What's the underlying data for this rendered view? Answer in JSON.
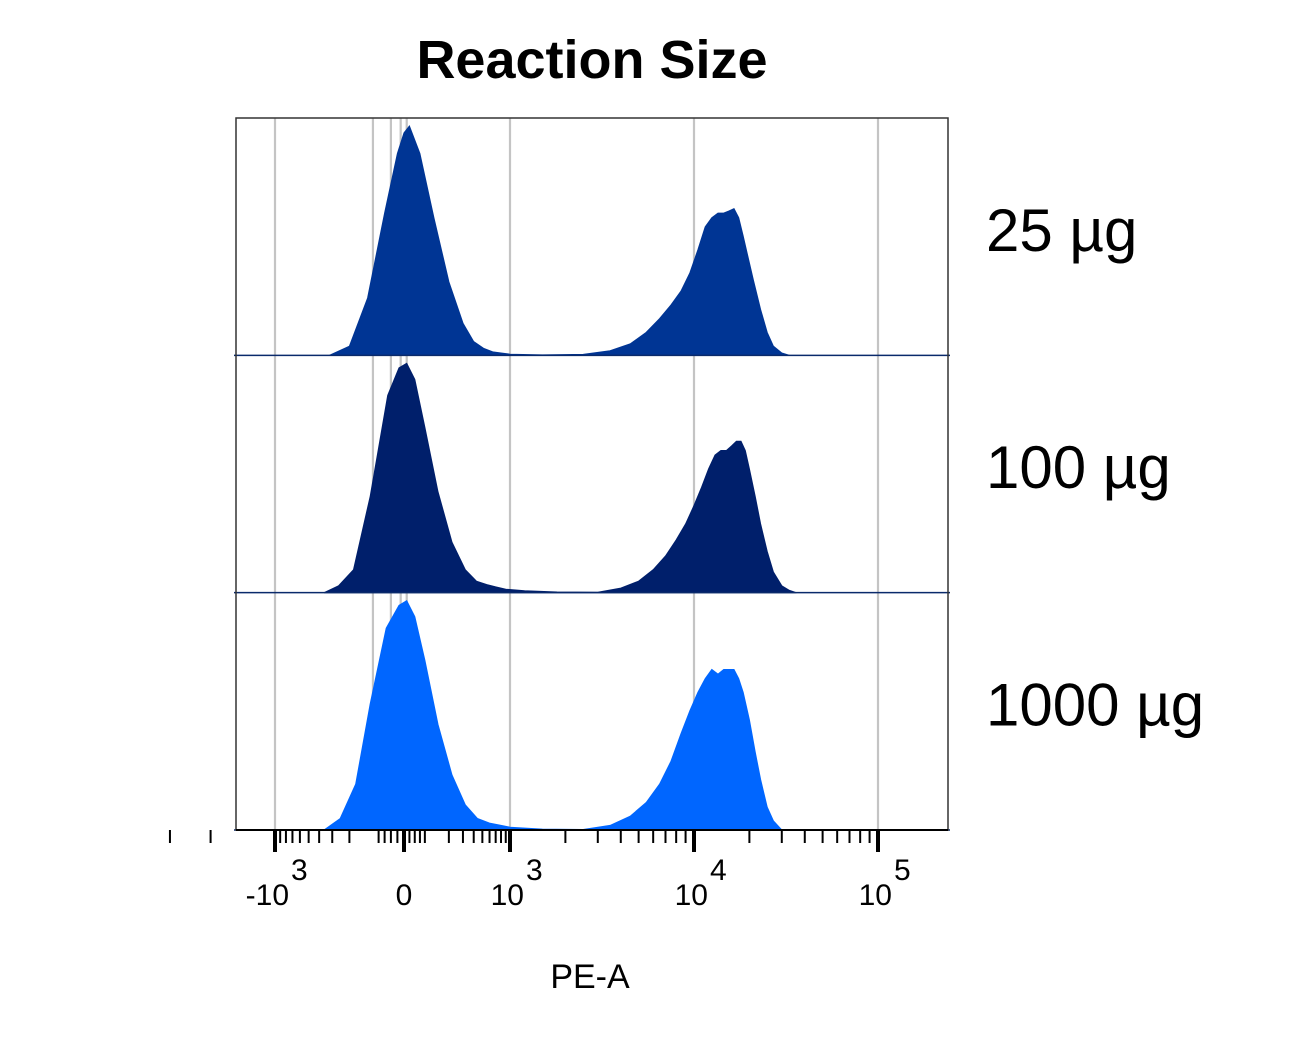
{
  "chart_data": {
    "type": "area",
    "title": "Reaction Size",
    "xlabel": "PE-A",
    "ylabel": "",
    "x_scale": "biexponential",
    "grid": "vertical",
    "x_ticks": [
      {
        "value": -1000,
        "base": "-10",
        "exp": "3"
      },
      {
        "value": 0,
        "base": "0",
        "exp": ""
      },
      {
        "value": 1000,
        "base": "10",
        "exp": "3"
      },
      {
        "value": 10000,
        "base": "10",
        "exp": "4"
      },
      {
        "value": 100000,
        "base": "10",
        "exp": "5"
      }
    ],
    "series": [
      {
        "name": "25 µg",
        "color": "#003594",
        "x": [
          -320,
          -200,
          -120,
          -60,
          -20,
          0,
          20,
          60,
          120,
          200,
          300,
          400,
          520,
          650,
          800,
          1000,
          1500,
          2500,
          3500,
          4500,
          5500,
          6500,
          7500,
          8500,
          9500,
          10500,
          11500,
          12500,
          13500,
          14500,
          15500,
          16500,
          17500,
          18500,
          19500,
          21000,
          23000,
          25000,
          27000,
          30000,
          33000
        ],
        "y": [
          0,
          0.04,
          0.25,
          0.62,
          0.88,
          0.97,
          1.0,
          0.88,
          0.6,
          0.32,
          0.14,
          0.06,
          0.03,
          0.015,
          0.01,
          0.005,
          0.002,
          0.004,
          0.02,
          0.05,
          0.1,
          0.16,
          0.22,
          0.28,
          0.36,
          0.46,
          0.56,
          0.6,
          0.62,
          0.62,
          0.63,
          0.64,
          0.6,
          0.52,
          0.44,
          0.33,
          0.2,
          0.1,
          0.04,
          0.01,
          0
        ]
      },
      {
        "name": "100 µg",
        "color": "#001f6b",
        "x": [
          -360,
          -260,
          -180,
          -110,
          -50,
          -15,
          10,
          40,
          80,
          140,
          220,
          320,
          430,
          560,
          700,
          900,
          1200,
          1800,
          3000,
          4000,
          5000,
          6000,
          7000,
          8000,
          9000,
          10000,
          11000,
          12000,
          13000,
          14000,
          15000,
          16000,
          17000,
          18000,
          19000,
          20000,
          21500,
          23000,
          25000,
          27000,
          30000,
          33000,
          36000
        ],
        "y": [
          0,
          0.03,
          0.1,
          0.42,
          0.86,
          0.98,
          1.0,
          0.93,
          0.72,
          0.44,
          0.22,
          0.1,
          0.05,
          0.035,
          0.025,
          0.015,
          0.008,
          0.003,
          0.002,
          0.02,
          0.05,
          0.1,
          0.16,
          0.23,
          0.3,
          0.38,
          0.46,
          0.54,
          0.6,
          0.62,
          0.62,
          0.64,
          0.66,
          0.66,
          0.62,
          0.54,
          0.42,
          0.3,
          0.18,
          0.09,
          0.03,
          0.01,
          0
        ]
      },
      {
        "name": "1000 µg",
        "color": "#0066ff",
        "x": [
          -360,
          -250,
          -170,
          -110,
          -55,
          -15,
          10,
          40,
          80,
          140,
          220,
          320,
          440,
          600,
          800,
          1000,
          1500,
          2500,
          3500,
          4500,
          5500,
          6500,
          7500,
          8500,
          9500,
          10500,
          11500,
          12500,
          13500,
          14500,
          15500,
          16500,
          17500,
          18500,
          20000,
          21500,
          23000,
          25000,
          27000,
          30000
        ],
        "y": [
          0,
          0.05,
          0.2,
          0.55,
          0.88,
          0.98,
          1.0,
          0.93,
          0.74,
          0.46,
          0.24,
          0.11,
          0.05,
          0.03,
          0.02,
          0.012,
          0.004,
          0.002,
          0.02,
          0.06,
          0.12,
          0.2,
          0.3,
          0.42,
          0.52,
          0.6,
          0.66,
          0.7,
          0.68,
          0.7,
          0.7,
          0.7,
          0.66,
          0.6,
          0.48,
          0.34,
          0.22,
          0.1,
          0.04,
          0
        ]
      }
    ]
  }
}
